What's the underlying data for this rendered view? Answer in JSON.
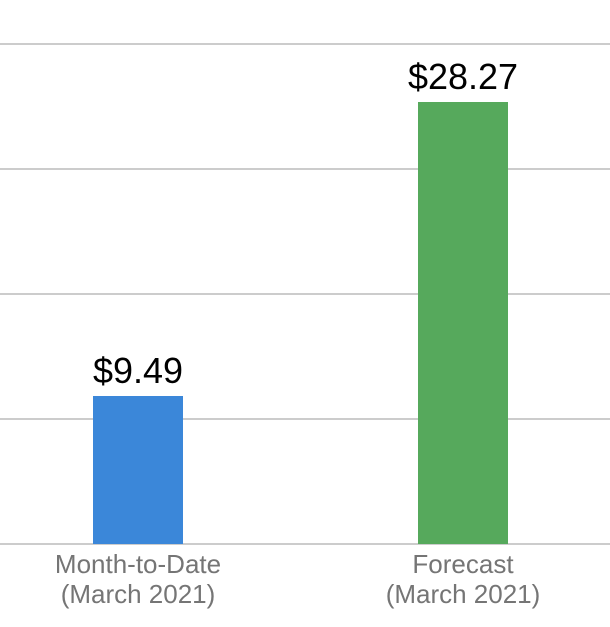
{
  "chart_data": {
    "type": "bar",
    "title": "",
    "xlabel": "",
    "ylabel": "",
    "currency_unit": "$",
    "categories": [
      {
        "line1": "Month-to-Date",
        "line2": "(March 2021)"
      },
      {
        "line1": "Forecast",
        "line2": "(March 2021)"
      }
    ],
    "values": [
      9.49,
      28.27
    ],
    "value_labels": [
      "$9.49",
      "$28.27"
    ],
    "bar_colors": [
      "#3B87D9",
      "#56A95C"
    ],
    "ylim": [
      0,
      32
    ],
    "gridline_values": [
      0,
      8,
      16,
      24,
      32
    ],
    "y_tick_labels_visible": false,
    "grid": "horizontal",
    "legend_position": "none",
    "styles": {
      "background_color": "#FFFFFF",
      "gridline_color": "#CCCCCC",
      "value_label_color": "#000000",
      "category_label_color": "#757575"
    }
  }
}
